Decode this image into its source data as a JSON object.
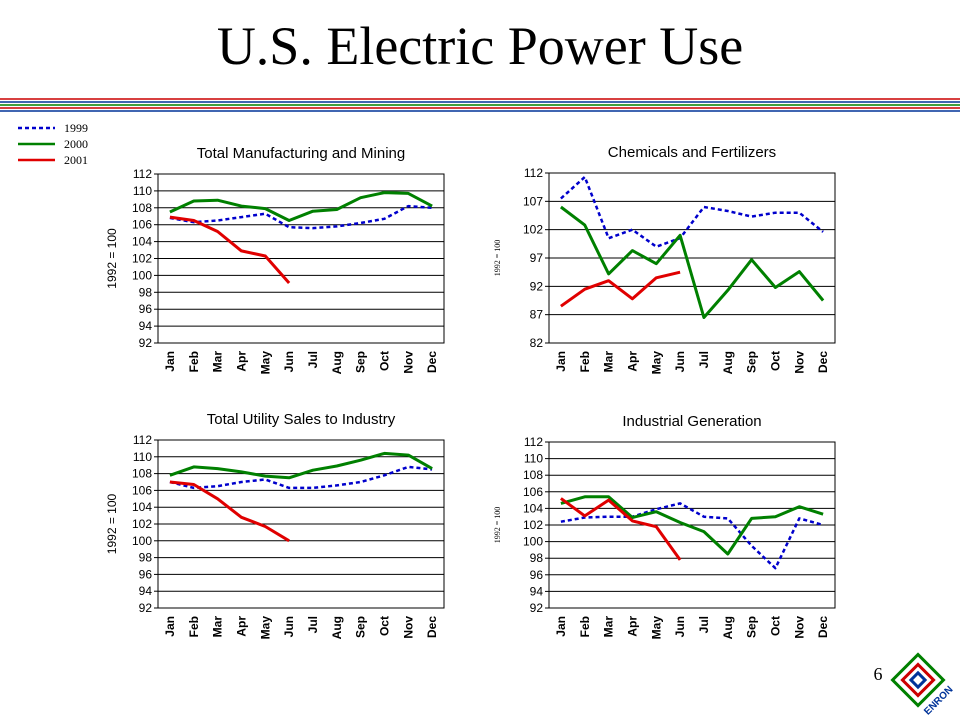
{
  "title": "U.S. Electric Power Use",
  "page_number": "6",
  "logo_text": "ENRON",
  "chart_data": [
    {
      "type": "line",
      "title": "Total Manufacturing and Mining",
      "y_label": "1992 = 100",
      "categories": [
        "Jan",
        "Feb",
        "Mar",
        "Apr",
        "May",
        "Jun",
        "Jul",
        "Aug",
        "Sep",
        "Oct",
        "Nov",
        "Dec"
      ],
      "ylim": [
        92,
        112
      ],
      "yticks": [
        92,
        94,
        96,
        98,
        100,
        102,
        104,
        106,
        108,
        110,
        112
      ],
      "grid": true,
      "series": [
        {
          "name": "1999",
          "color": "#0000cc",
          "style": "dotted",
          "values": [
            106.8,
            106.3,
            106.5,
            106.9,
            107.3,
            105.7,
            105.6,
            105.8,
            106.2,
            106.7,
            108.2,
            108.0
          ]
        },
        {
          "name": "2000",
          "color": "#008000",
          "style": "solid",
          "values": [
            107.5,
            108.8,
            108.9,
            108.2,
            107.9,
            106.5,
            107.6,
            107.8,
            109.2,
            109.8,
            109.7,
            108.2
          ]
        },
        {
          "name": "2001",
          "color": "#e00000",
          "style": "solid",
          "values": [
            106.9,
            106.5,
            105.2,
            102.9,
            102.3,
            99.1,
            null,
            null,
            null,
            null,
            null,
            null
          ]
        }
      ]
    },
    {
      "type": "line",
      "title": "Chemicals and Fertilizers",
      "y_label": "1992 = 100",
      "categories": [
        "Jan",
        "Feb",
        "Mar",
        "Apr",
        "May",
        "Jun",
        "Jul",
        "Aug",
        "Sep",
        "Oct",
        "Nov",
        "Dec"
      ],
      "ylim": [
        82,
        112
      ],
      "yticks": [
        82,
        87,
        92,
        97,
        102,
        107,
        112
      ],
      "grid": true,
      "series": [
        {
          "name": "1999",
          "color": "#0000cc",
          "style": "dotted",
          "values": [
            107.5,
            111.3,
            100.5,
            102,
            99,
            100.5,
            106,
            105.3,
            104.3,
            105,
            105,
            101.6
          ]
        },
        {
          "name": "2000",
          "color": "#008000",
          "style": "solid",
          "values": [
            106,
            102.8,
            94.2,
            98.3,
            96,
            101,
            86.5,
            91.3,
            96.7,
            91.8,
            94.6,
            89.5
          ]
        },
        {
          "name": "2001",
          "color": "#e00000",
          "style": "solid",
          "values": [
            88.5,
            91.5,
            93,
            89.8,
            93.5,
            94.5,
            null,
            null,
            null,
            null,
            null,
            null
          ]
        }
      ]
    },
    {
      "type": "line",
      "title": "Total Utility Sales to Industry",
      "y_label": "1992 = 100",
      "categories": [
        "Jan",
        "Feb",
        "Mar",
        "Apr",
        "May",
        "Jun",
        "Jul",
        "Aug",
        "Sep",
        "Oct",
        "Nov",
        "Dec"
      ],
      "ylim": [
        92,
        112
      ],
      "yticks": [
        92,
        94,
        96,
        98,
        100,
        102,
        104,
        106,
        108,
        110,
        112
      ],
      "grid": true,
      "series": [
        {
          "name": "1999",
          "color": "#0000cc",
          "style": "dotted",
          "values": [
            107,
            106.3,
            106.5,
            107,
            107.3,
            106.3,
            106.3,
            106.6,
            107,
            107.8,
            108.8,
            108.5
          ]
        },
        {
          "name": "2000",
          "color": "#008000",
          "style": "solid",
          "values": [
            107.8,
            108.8,
            108.6,
            108.2,
            107.7,
            107.5,
            108.4,
            108.9,
            109.6,
            110.4,
            110.2,
            108.6
          ]
        },
        {
          "name": "2001",
          "color": "#e00000",
          "style": "solid",
          "values": [
            107,
            106.7,
            105,
            102.8,
            101.7,
            100,
            null,
            null,
            null,
            null,
            null,
            null
          ]
        }
      ]
    },
    {
      "type": "line",
      "title": "Industrial Generation",
      "y_label": "1992 = 100",
      "categories": [
        "Jan",
        "Feb",
        "Mar",
        "Apr",
        "May",
        "Jun",
        "Jul",
        "Aug",
        "Sep",
        "Oct",
        "Nov",
        "Dec"
      ],
      "ylim": [
        92,
        112
      ],
      "yticks": [
        92,
        94,
        96,
        98,
        100,
        102,
        104,
        106,
        108,
        110,
        112
      ],
      "grid": true,
      "series": [
        {
          "name": "1999",
          "color": "#0000cc",
          "style": "dotted",
          "values": [
            102.4,
            102.9,
            103,
            103,
            103.9,
            104.6,
            103,
            102.8,
            99.5,
            96.8,
            102.8,
            102
          ]
        },
        {
          "name": "2000",
          "color": "#008000",
          "style": "solid",
          "values": [
            104.6,
            105.4,
            105.4,
            102.9,
            103.6,
            102.3,
            101.2,
            98.5,
            102.8,
            103,
            104.2,
            103.3
          ]
        },
        {
          "name": "2001",
          "color": "#e00000",
          "style": "solid",
          "values": [
            105.2,
            103.1,
            105,
            102.5,
            101.8,
            97.8,
            null,
            null,
            null,
            null,
            null,
            null
          ]
        }
      ]
    }
  ]
}
